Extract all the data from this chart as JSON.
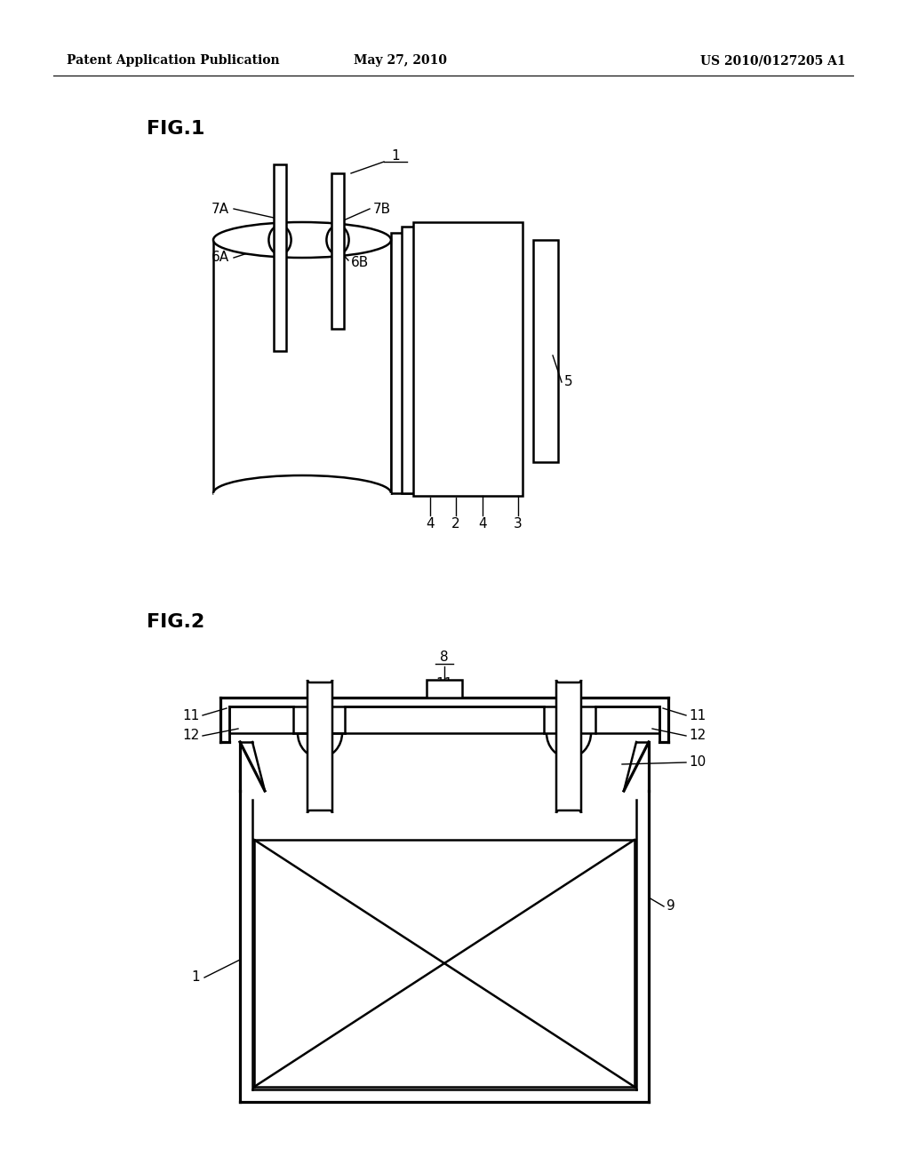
{
  "bg_color": "#ffffff",
  "line_color": "#000000",
  "header_left": "Patent Application Publication",
  "header_center": "May 27, 2010",
  "header_right": "US 2010/0127205 A1",
  "fig1_label": "FIG.1",
  "fig2_label": "FIG.2"
}
